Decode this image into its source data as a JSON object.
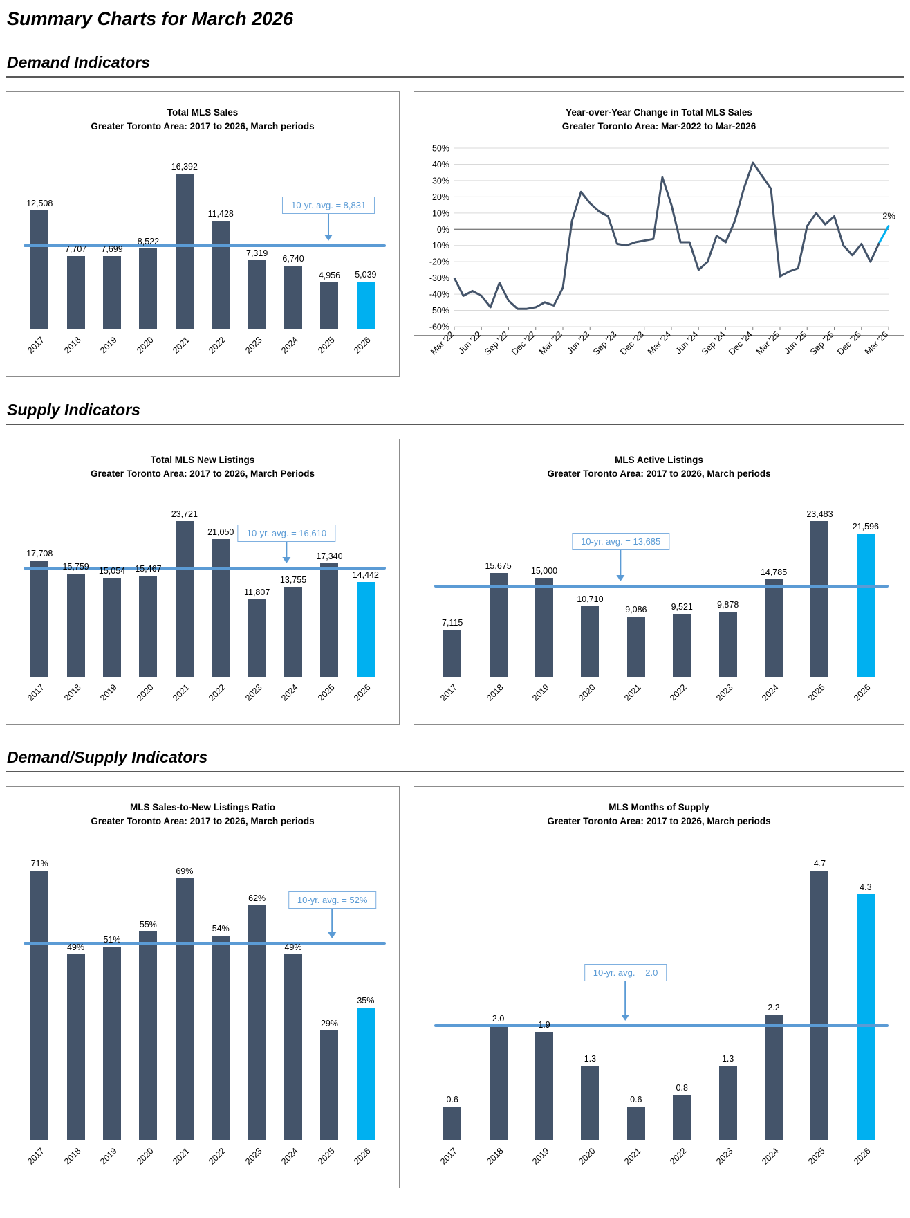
{
  "page": {
    "title": "Summary Charts for March 2026",
    "sections": [
      {
        "heading": "Demand Indicators"
      },
      {
        "heading": "Supply Indicators"
      },
      {
        "heading": "Demand/Supply Indicators"
      }
    ]
  },
  "colors": {
    "bar": "#44546A",
    "highlight_bar": "#00B0F0",
    "avg_line": "#5B9BD5",
    "avg_text": "#5B9BD5",
    "grid": "#D9D9D9",
    "zero_line": "#7F7F7F",
    "line": "#44546A",
    "line_highlight": "#00B0F0"
  },
  "chart_data": [
    {
      "type": "bar",
      "title": "Total MLS Sales",
      "subtitle": "Greater Toronto Area: 2017 to 2026, March periods",
      "categories": [
        "2017",
        "2018",
        "2019",
        "2020",
        "2021",
        "2022",
        "2023",
        "2024",
        "2025",
        "2026"
      ],
      "values": [
        12508,
        7707,
        7699,
        8522,
        16392,
        11428,
        7319,
        6740,
        4956,
        5039
      ],
      "labels": [
        "12,508",
        "7,707",
        "7,699",
        "8,522",
        "16,392",
        "11,428",
        "7,319",
        "6,740",
        "4,956",
        "5,039"
      ],
      "avg_label": "10-yr. avg. = 8,831",
      "avg_value": 8831,
      "highlight_last": true,
      "callout": {
        "x_pct": 83,
        "gap": 46
      }
    },
    {
      "type": "line",
      "title": "Year-over-Year Change in Total MLS Sales",
      "subtitle": "Greater Toronto Area: Mar-2022 to Mar-2026",
      "x_tick_labels": [
        "Mar '22",
        "Jun '22",
        "Sep '22",
        "Dec '22",
        "Mar '23",
        "Jun '23",
        "Sep '23",
        "Dec '23",
        "Mar '24",
        "Jun '24",
        "Sep '24",
        "Dec '24",
        "Mar '25",
        "Jun '25",
        "Sep '25",
        "Dec '25",
        "Mar '26"
      ],
      "x_tick_every": 3,
      "values": [
        -30,
        -41,
        -38,
        -41,
        -48,
        -33,
        -44,
        -49,
        -49,
        -48,
        -45,
        -47,
        -36,
        5,
        23,
        16,
        11,
        8,
        -9,
        -10,
        -8,
        -7,
        -6,
        32,
        15,
        -8,
        -8,
        -25,
        -20,
        -4,
        -8,
        5,
        25,
        41,
        33,
        25,
        -29,
        -26,
        -24,
        2,
        10,
        3,
        8,
        -10,
        -16,
        -9,
        -20,
        -8,
        2
      ],
      "values_note": "monthly YoY % change, estimated from plot",
      "ylim": [
        -60,
        50
      ],
      "yticks": [
        50,
        40,
        30,
        20,
        10,
        0,
        -10,
        -20,
        -30,
        -40,
        -50,
        -60
      ],
      "ytick_labels": [
        "50%",
        "40%",
        "30%",
        "20%",
        "10%",
        "0%",
        "-10%",
        "-20%",
        "-30%",
        "-40%",
        "-50%",
        "-60%"
      ],
      "end_label": "2%",
      "grid": true,
      "legend": "none"
    },
    {
      "type": "bar",
      "title": "Total MLS New Listings",
      "subtitle": "Greater Toronto Area: 2017 to 2026, March Periods",
      "categories": [
        "2017",
        "2018",
        "2019",
        "2020",
        "2021",
        "2022",
        "2023",
        "2024",
        "2025",
        "2026"
      ],
      "values": [
        17708,
        15759,
        15054,
        15467,
        23721,
        21050,
        11807,
        13755,
        17340,
        14442
      ],
      "labels": [
        "17,708",
        "15,759",
        "15,054",
        "15,467",
        "23,721",
        "21,050",
        "11,807",
        "13,755",
        "17,340",
        "14,442"
      ],
      "avg_label": "10-yr. avg. = 16,610",
      "avg_value": 16610,
      "highlight_last": true,
      "callout": {
        "x_pct": 72,
        "gap": 38
      }
    },
    {
      "type": "bar",
      "title": "MLS Active Listings",
      "subtitle": "Greater Toronto Area: 2017 to 2026, March periods",
      "categories": [
        "2017",
        "2018",
        "2019",
        "2020",
        "2021",
        "2022",
        "2023",
        "2024",
        "2025",
        "2026"
      ],
      "values": [
        7115,
        15675,
        15000,
        10710,
        9086,
        9521,
        9878,
        14785,
        23483,
        21596
      ],
      "labels": [
        "7,115",
        "15,675",
        "15,000",
        "10,710",
        "9,086",
        "9,521",
        "9,878",
        "14,785",
        "23,483",
        "21,596"
      ],
      "avg_label": "10-yr. avg. = 13,685",
      "avg_value": 13685,
      "highlight_last": true,
      "callout": {
        "x_pct": 42,
        "gap": 52
      }
    },
    {
      "type": "bar",
      "title": "MLS Sales-to-New Listings Ratio",
      "subtitle": "Greater Toronto Area: 2017 to 2026, March periods",
      "categories": [
        "2017",
        "2018",
        "2019",
        "2020",
        "2021",
        "2022",
        "2023",
        "2024",
        "2025",
        "2026"
      ],
      "values": [
        71,
        49,
        51,
        55,
        69,
        54,
        62,
        49,
        29,
        35
      ],
      "labels": [
        "71%",
        "49%",
        "51%",
        "55%",
        "69%",
        "54%",
        "62%",
        "49%",
        "29%",
        "35%"
      ],
      "avg_label": "10-yr. avg. = 52%",
      "avg_value": 52,
      "highlight_last": true,
      "callout": {
        "x_pct": 84,
        "gap": 50
      }
    },
    {
      "type": "bar",
      "title": "MLS Months of Supply",
      "subtitle": "Greater Toronto Area: 2017 to 2026, March periods",
      "categories": [
        "2017",
        "2018",
        "2019",
        "2020",
        "2021",
        "2022",
        "2023",
        "2024",
        "2025",
        "2026"
      ],
      "values": [
        0.6,
        2.0,
        1.9,
        1.3,
        0.6,
        0.8,
        1.3,
        2.2,
        4.7,
        4.3
      ],
      "labels": [
        "0.6",
        "2.0",
        "1.9",
        "1.3",
        "0.6",
        "0.8",
        "1.3",
        "2.2",
        "4.7",
        "4.3"
      ],
      "avg_label": "10-yr. avg. = 2.0",
      "avg_value": 2.0,
      "highlight_last": true,
      "callout": {
        "x_pct": 43,
        "gap": 64
      }
    }
  ]
}
